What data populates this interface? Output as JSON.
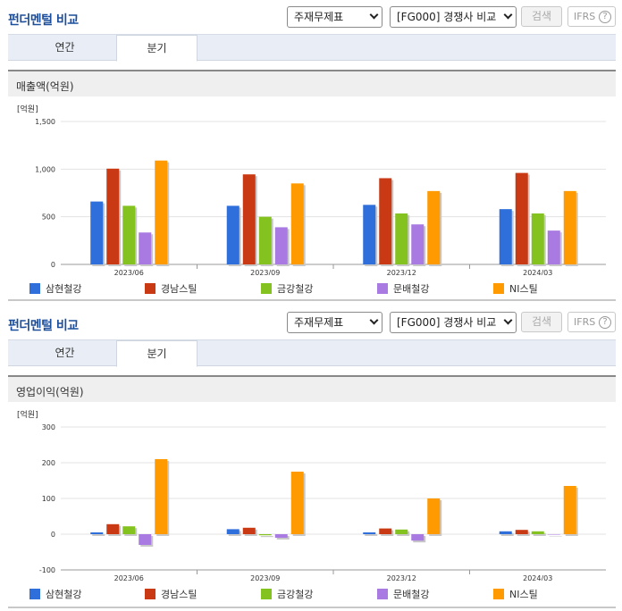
{
  "header": {
    "title": "펀더멘털 비교",
    "select1": "주재무제표",
    "select2": "[FG000] 경쟁사 비교",
    "search_label": "검색",
    "ifrs_label": "IFRS",
    "ifrs_help": "?"
  },
  "tabs": [
    {
      "label": "연간"
    },
    {
      "label": "분기"
    }
  ],
  "colors": {
    "삼현철강": "#2f6fdb",
    "경남스틸": "#c93a14",
    "금강철강": "#83c21f",
    "문배철강": "#a97ae2",
    "NI스틸": "#ff9a00"
  },
  "chart_data": [
    {
      "type": "bar",
      "title": "매출액(억원)",
      "unit_label": "[억원]",
      "categories": [
        "2023/06",
        "2023/09",
        "2023/12",
        "2024/03"
      ],
      "ylim": [
        0,
        1500
      ],
      "yticks": [
        {
          "v": 0,
          "label": "0"
        },
        {
          "v": 500,
          "label": "500"
        },
        {
          "v": 1000,
          "label": "1,000"
        },
        {
          "v": 1500,
          "label": "1,500"
        }
      ],
      "grid": true,
      "legend_position": "bottom",
      "series": [
        {
          "name": "삼현철강",
          "values": [
            660,
            615,
            625,
            580
          ]
        },
        {
          "name": "경남스틸",
          "values": [
            1005,
            945,
            905,
            960
          ]
        },
        {
          "name": "금강철강",
          "values": [
            615,
            500,
            535,
            535
          ]
        },
        {
          "name": "문배철강",
          "values": [
            335,
            390,
            420,
            355
          ]
        },
        {
          "name": "NI스틸",
          "values": [
            1090,
            850,
            770,
            770
          ]
        }
      ]
    },
    {
      "type": "bar",
      "title": "영업이익(억원)",
      "unit_label": "[억원]",
      "categories": [
        "2023/06",
        "2023/09",
        "2023/12",
        "2024/03"
      ],
      "ylim": [
        -100,
        300
      ],
      "yticks": [
        {
          "v": -100,
          "label": "-100"
        },
        {
          "v": 0,
          "label": "0"
        },
        {
          "v": 100,
          "label": "100"
        },
        {
          "v": 200,
          "label": "200"
        },
        {
          "v": 300,
          "label": "300"
        }
      ],
      "grid": true,
      "legend_position": "bottom",
      "series": [
        {
          "name": "삼현철강",
          "values": [
            5,
            14,
            5,
            8
          ]
        },
        {
          "name": "경남스틸",
          "values": [
            28,
            18,
            16,
            12
          ]
        },
        {
          "name": "금강철강",
          "values": [
            22,
            -3,
            13,
            8
          ]
        },
        {
          "name": "문배철강",
          "values": [
            -30,
            -10,
            -18,
            0
          ]
        },
        {
          "name": "NI스틸",
          "values": [
            210,
            175,
            100,
            135
          ]
        }
      ]
    }
  ]
}
